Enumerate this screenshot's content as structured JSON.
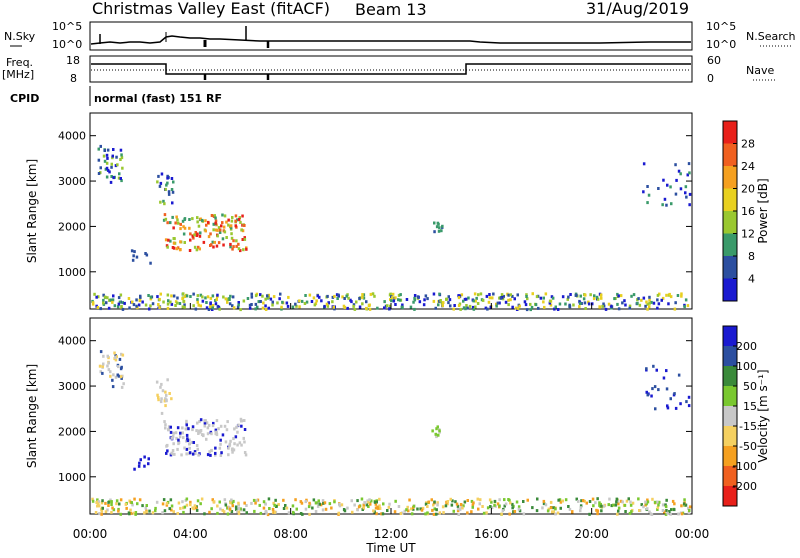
{
  "header": {
    "title": "Christmas Valley East (fitACF)",
    "beam": "Beam 13",
    "date": "31/Aug/2019"
  },
  "strip": {
    "nsky_label": "N.Sky",
    "nsky_ticks": [
      "10^5",
      "10^0"
    ],
    "nsearch_label": "N.Search",
    "nsearch_ticks": [
      "10^5",
      "10^0"
    ],
    "freq_label": "Freq.",
    "freq_unit": "[MHz]",
    "freq_ticks": [
      "18",
      "8"
    ],
    "nave_label": "Nave",
    "nave_ticks": [
      "60",
      "0"
    ],
    "cpid_label": "CPID",
    "cpid_text": "normal (fast) 151 RF"
  },
  "chart_data": [
    {
      "type": "heatmap",
      "name": "power",
      "xlabel": "Time UT",
      "ylabel": "Slant Range [km]",
      "y_ticks": [
        1000,
        2000,
        3000,
        4000
      ],
      "ylim": [
        180,
        4500
      ],
      "xlim": [
        0,
        24
      ],
      "colorbar": {
        "label": "Power [dB]",
        "ticks": [
          "28",
          "24",
          "20",
          "16",
          "12",
          "8",
          "4"
        ],
        "colors": [
          "#e8201a",
          "#f06020",
          "#f5a020",
          "#e8d020",
          "#9ac830",
          "#3a9a6a",
          "#2c4fa0",
          "#1a1ad0"
        ]
      }
    },
    {
      "type": "heatmap",
      "name": "velocity",
      "xlabel": "Time UT",
      "ylabel": "Slant Range [km]",
      "y_ticks": [
        1000,
        2000,
        3000,
        4000
      ],
      "ylim": [
        180,
        4500
      ],
      "xlim": [
        0,
        24
      ],
      "colorbar": {
        "label": "Velocity [m s⁻¹]",
        "ticks": [
          "200",
          "100",
          "50",
          "15",
          "-15",
          "-50",
          "-100",
          "-200"
        ],
        "colors": [
          "#1a1ad0",
          "#2c4fa0",
          "#3a8a3a",
          "#7ac830",
          "#c8c8c8",
          "#f5d060",
          "#f5a020",
          "#f06020",
          "#e8201a"
        ]
      }
    }
  ],
  "time_axis": {
    "ticks": [
      "00:00",
      "04:00",
      "08:00",
      "12:00",
      "16:00",
      "20:00",
      "00:00"
    ],
    "label": "Time UT"
  }
}
